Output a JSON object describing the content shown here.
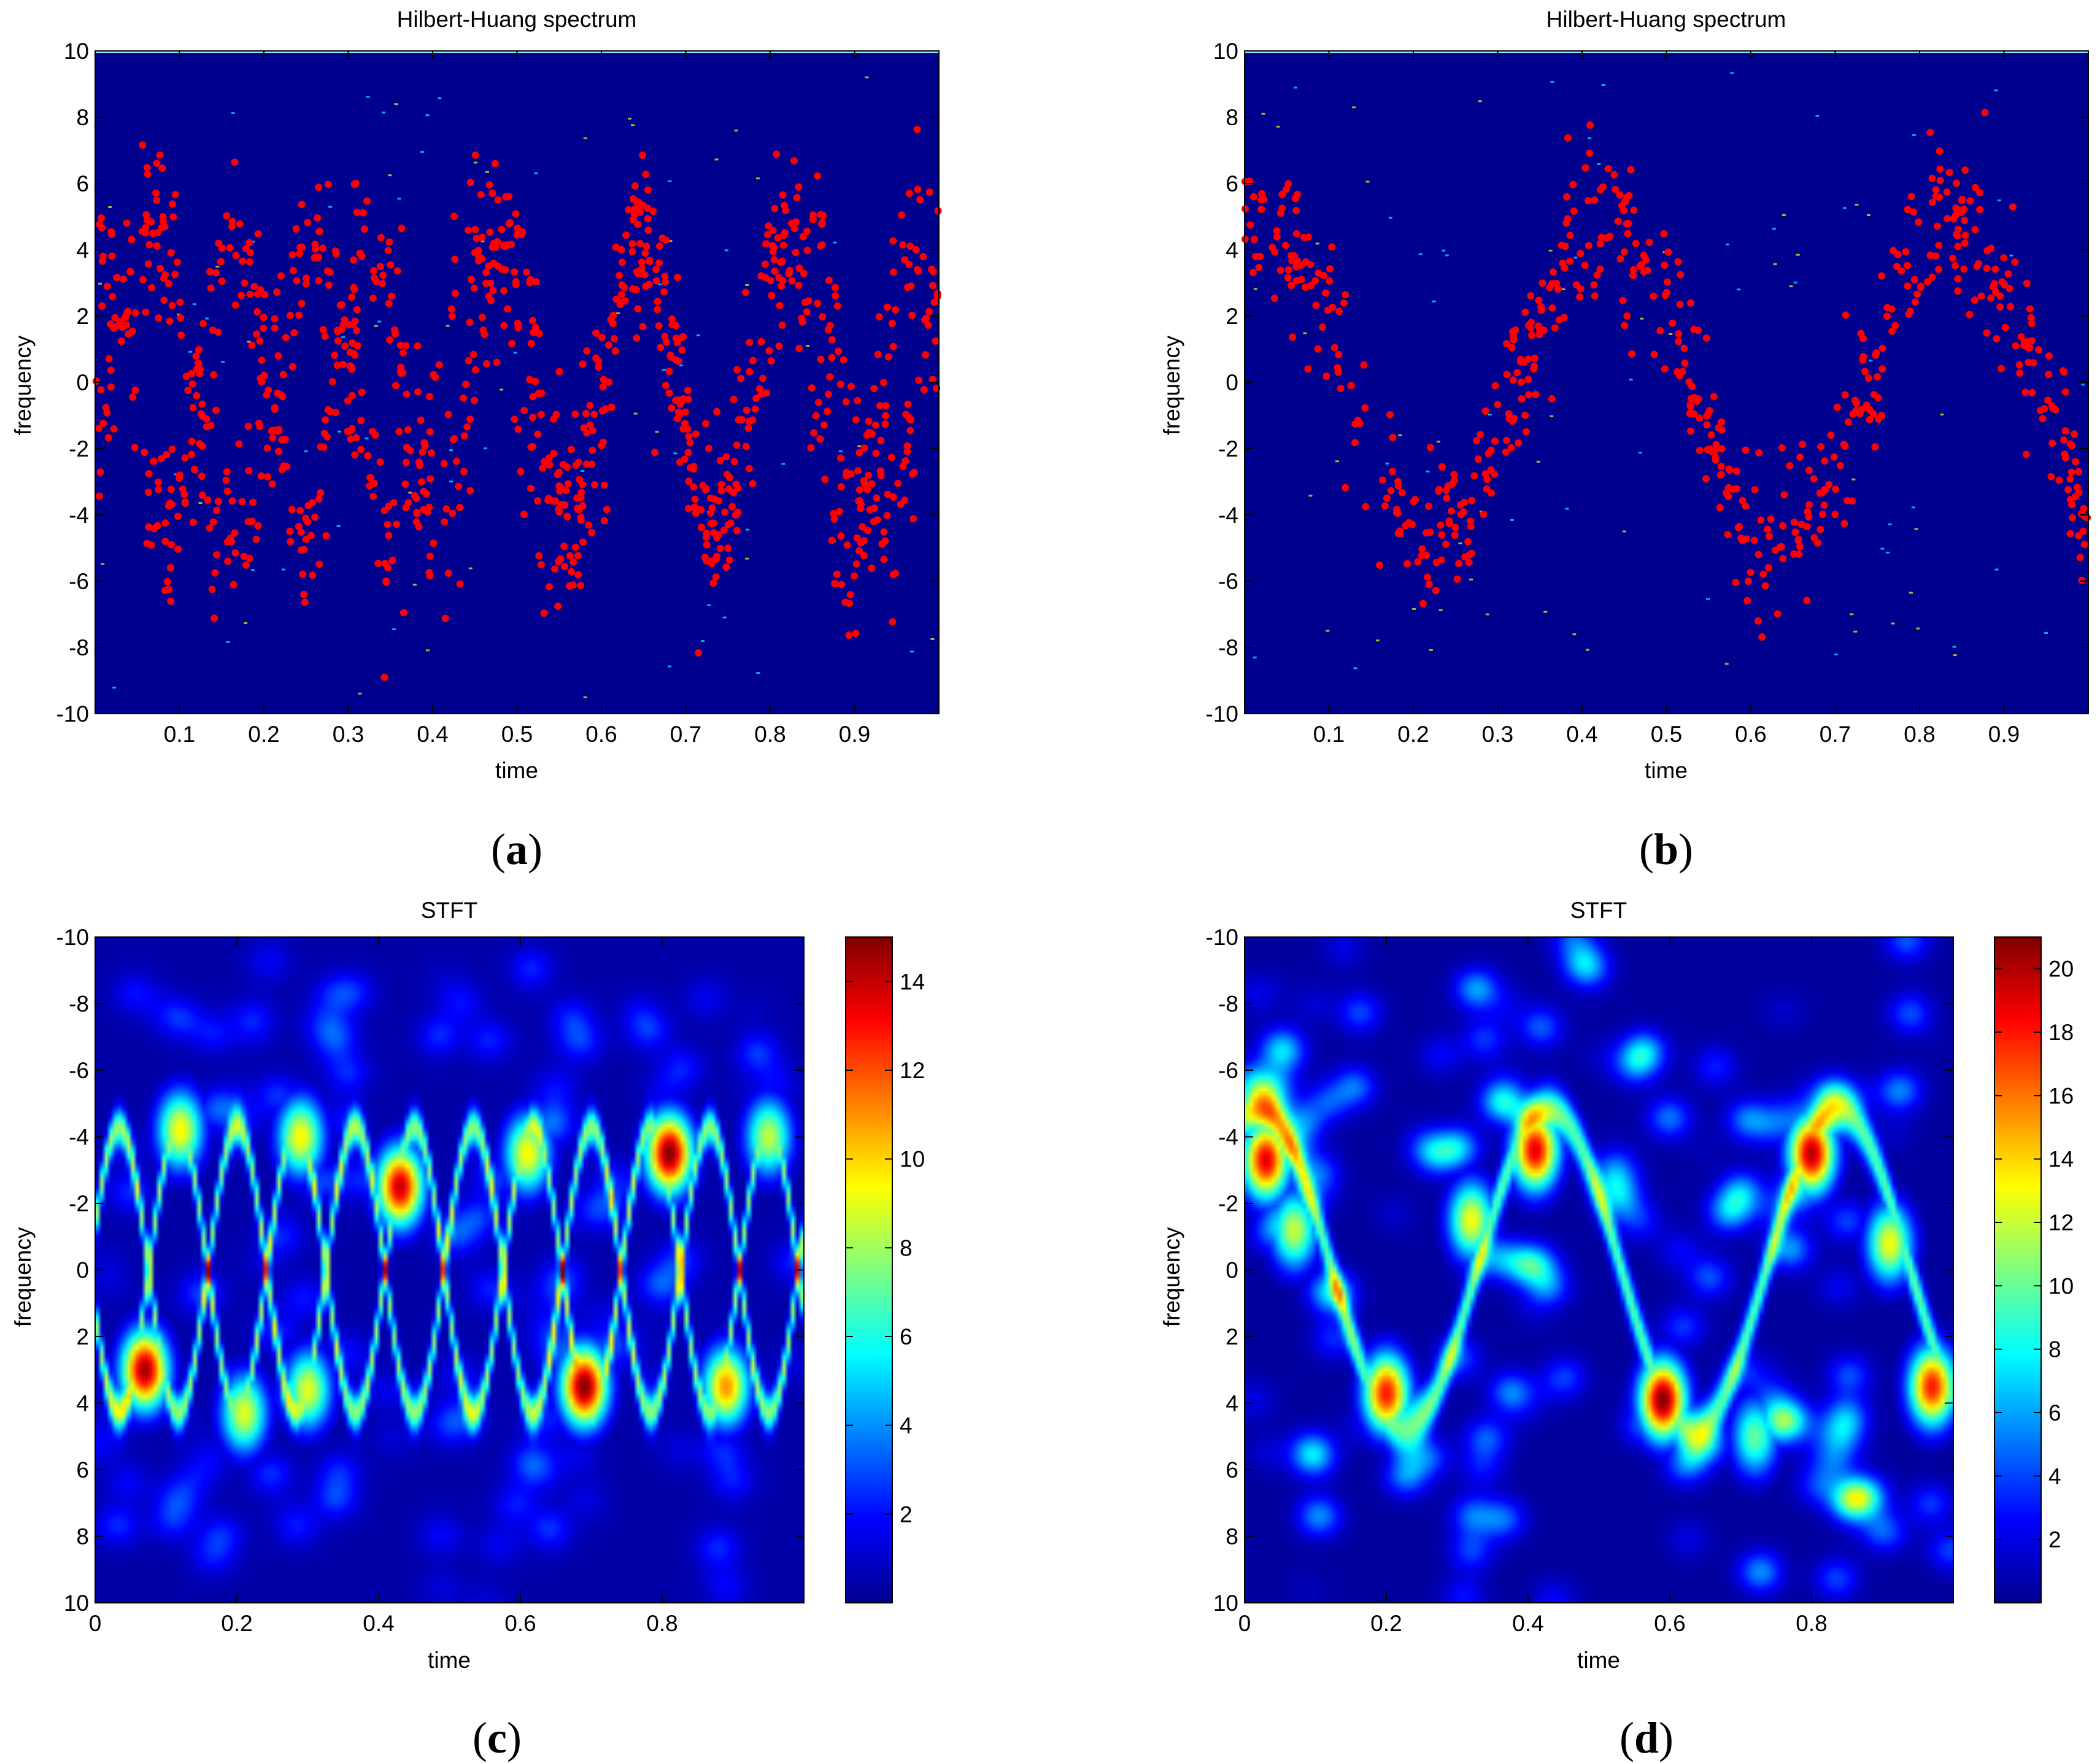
{
  "figure": {
    "panels": [
      {
        "label_open": "(",
        "label_letter": "a",
        "label_close": ")"
      },
      {
        "label_open": "(",
        "label_letter": "b",
        "label_close": ")"
      },
      {
        "label_open": "(",
        "label_letter": "c",
        "label_close": ")"
      },
      {
        "label_open": "(",
        "label_letter": "d",
        "label_close": ")"
      }
    ]
  },
  "colors": {
    "hht_background": "#00008F",
    "hht_points": "#FF0000",
    "hht_speckles": "#FFFF00",
    "axis": "#000000"
  },
  "chart_data": [
    {
      "id": "a",
      "type": "scatter",
      "title": "Hilbert-Huang spectrum",
      "xlabel": "time",
      "ylabel": "frequency",
      "xlim": [
        0,
        1
      ],
      "ylim": [
        -10,
        10
      ],
      "xticks": [
        0.1,
        0.2,
        0.3,
        0.4,
        0.5,
        0.6,
        0.7,
        0.8,
        0.9
      ],
      "xtick_labels": [
        "0.1",
        "0.2",
        "0.3",
        "0.4",
        "0.5",
        "0.6",
        "0.7",
        "0.8",
        "0.9"
      ],
      "yticks": [
        -10,
        -8,
        -6,
        -4,
        -2,
        0,
        2,
        4,
        6,
        8,
        10
      ],
      "ytick_labels": [
        "-10",
        "-8",
        "-6",
        "-4",
        "-2",
        "0",
        "2",
        "4",
        "6",
        "8",
        "10"
      ],
      "background": "#00008F",
      "series": [
        {
          "marker_color": "#FF0000",
          "center_curves": [
            {
              "amp": 4.6,
              "freq": 6.2,
              "phase": 1.4
            },
            {
              "amp": 4.2,
              "freq": 5.2,
              "phase": -0.6
            }
          ],
          "spread": 1.3,
          "count": 1100
        }
      ]
    },
    {
      "id": "b",
      "type": "scatter",
      "title": "Hilbert-Huang spectrum",
      "xlabel": "time",
      "ylabel": "frequency",
      "xlim": [
        0,
        1
      ],
      "ylim": [
        -10,
        10
      ],
      "xticks": [
        0.1,
        0.2,
        0.3,
        0.4,
        0.5,
        0.6,
        0.7,
        0.8,
        0.9
      ],
      "xtick_labels": [
        "0.1",
        "0.2",
        "0.3",
        "0.4",
        "0.5",
        "0.6",
        "0.7",
        "0.8",
        "0.9"
      ],
      "yticks": [
        -10,
        -8,
        -6,
        -4,
        -2,
        0,
        2,
        4,
        6,
        8,
        10
      ],
      "ytick_labels": [
        "-10",
        "-8",
        "-6",
        "-4",
        "-2",
        "0",
        "2",
        "4",
        "6",
        "8",
        "10"
      ],
      "background": "#00008F",
      "series": [
        {
          "marker_color": "#FF0000",
          "center_curves": [
            {
              "amp": 4.8,
              "freq": 2.45,
              "phase": 1.25
            }
          ],
          "spread": 1.2,
          "count": 620
        }
      ]
    },
    {
      "id": "c",
      "type": "heatmap",
      "title": "STFT",
      "xlabel": "time",
      "ylabel": "frequency",
      "xlim": [
        0,
        1
      ],
      "ylim": [
        -10,
        10
      ],
      "y_reversed": true,
      "xticks": [
        0,
        0.2,
        0.4,
        0.6,
        0.8
      ],
      "xtick_labels": [
        "0",
        "0.2",
        "0.4",
        "0.6",
        "0.8"
      ],
      "yticks": [
        -10,
        -8,
        -6,
        -4,
        -2,
        0,
        2,
        4,
        6,
        8,
        10
      ],
      "ytick_labels": [
        "-10",
        "-8",
        "-6",
        "-4",
        "-2",
        "0",
        "2",
        "4",
        "6",
        "8",
        "10"
      ],
      "colorbar": {
        "min": 0,
        "max": 15,
        "ticks": [
          2,
          4,
          6,
          8,
          10,
          12,
          14
        ],
        "tick_labels": [
          "2",
          "4",
          "6",
          "8",
          "10",
          "12",
          "14"
        ]
      },
      "ridges": [
        {
          "amp": 4.3,
          "freq": 6.0,
          "phase": 0.3,
          "width": 0.55,
          "level": 7.0
        },
        {
          "amp": 4.3,
          "freq": 6.0,
          "phase": 3.44,
          "width": 0.55,
          "level": 7.0
        }
      ],
      "hotspots": [
        {
          "t": 0.07,
          "f": 3.0,
          "v": 14.5
        },
        {
          "t": 0.43,
          "f": -2.5,
          "v": 14.0
        },
        {
          "t": 0.69,
          "f": 3.5,
          "v": 15.0
        },
        {
          "t": 0.81,
          "f": -3.5,
          "v": 15.0
        },
        {
          "t": 0.89,
          "f": 3.5,
          "v": 11.0
        },
        {
          "t": 0.12,
          "f": -4.2,
          "v": 9.5
        },
        {
          "t": 0.29,
          "f": -4.0,
          "v": 9.5
        },
        {
          "t": 0.21,
          "f": 4.3,
          "v": 9.0
        },
        {
          "t": 0.3,
          "f": 3.6,
          "v": 9.0
        },
        {
          "t": 0.61,
          "f": -3.5,
          "v": 9.5
        },
        {
          "t": 0.95,
          "f": -4.0,
          "v": 8.5
        }
      ],
      "background_level": 1.5
    },
    {
      "id": "d",
      "type": "heatmap",
      "title": "STFT",
      "xlabel": "time",
      "ylabel": "frequency",
      "xlim": [
        0,
        1
      ],
      "ylim": [
        -10,
        10
      ],
      "y_reversed": true,
      "xticks": [
        0,
        0.2,
        0.4,
        0.6,
        0.8
      ],
      "xtick_labels": [
        "0",
        "0.2",
        "0.4",
        "0.6",
        "0.8"
      ],
      "yticks": [
        -10,
        -8,
        -6,
        -4,
        -2,
        0,
        2,
        4,
        6,
        8,
        10
      ],
      "ytick_labels": [
        "-10",
        "-8",
        "-6",
        "-4",
        "-2",
        "0",
        "2",
        "4",
        "6",
        "8",
        "10"
      ],
      "colorbar": {
        "min": 0,
        "max": 21,
        "ticks": [
          2,
          4,
          6,
          8,
          10,
          12,
          14,
          16,
          18,
          20
        ],
        "tick_labels": [
          "2",
          "4",
          "6",
          "8",
          "10",
          "12",
          "14",
          "16",
          "18",
          "20"
        ]
      },
      "ridges": [
        {
          "amp": 4.8,
          "freq": 2.45,
          "phase": -1.9,
          "width": 0.7,
          "level": 9.0
        }
      ],
      "hotspots": [
        {
          "t": 0.03,
          "f": -3.3,
          "v": 19.0
        },
        {
          "t": 0.07,
          "f": -1.2,
          "v": 12.0
        },
        {
          "t": 0.2,
          "f": 3.7,
          "v": 18.0
        },
        {
          "t": 0.32,
          "f": -1.5,
          "v": 13.0
        },
        {
          "t": 0.41,
          "f": -3.6,
          "v": 19.0
        },
        {
          "t": 0.59,
          "f": 3.9,
          "v": 21.0
        },
        {
          "t": 0.8,
          "f": -3.5,
          "v": 20.0
        },
        {
          "t": 0.91,
          "f": -0.8,
          "v": 13.0
        },
        {
          "t": 0.97,
          "f": 3.5,
          "v": 18.0
        },
        {
          "t": 0.72,
          "f": 5.0,
          "v": 10.0
        }
      ],
      "background_level": 4.0
    }
  ]
}
